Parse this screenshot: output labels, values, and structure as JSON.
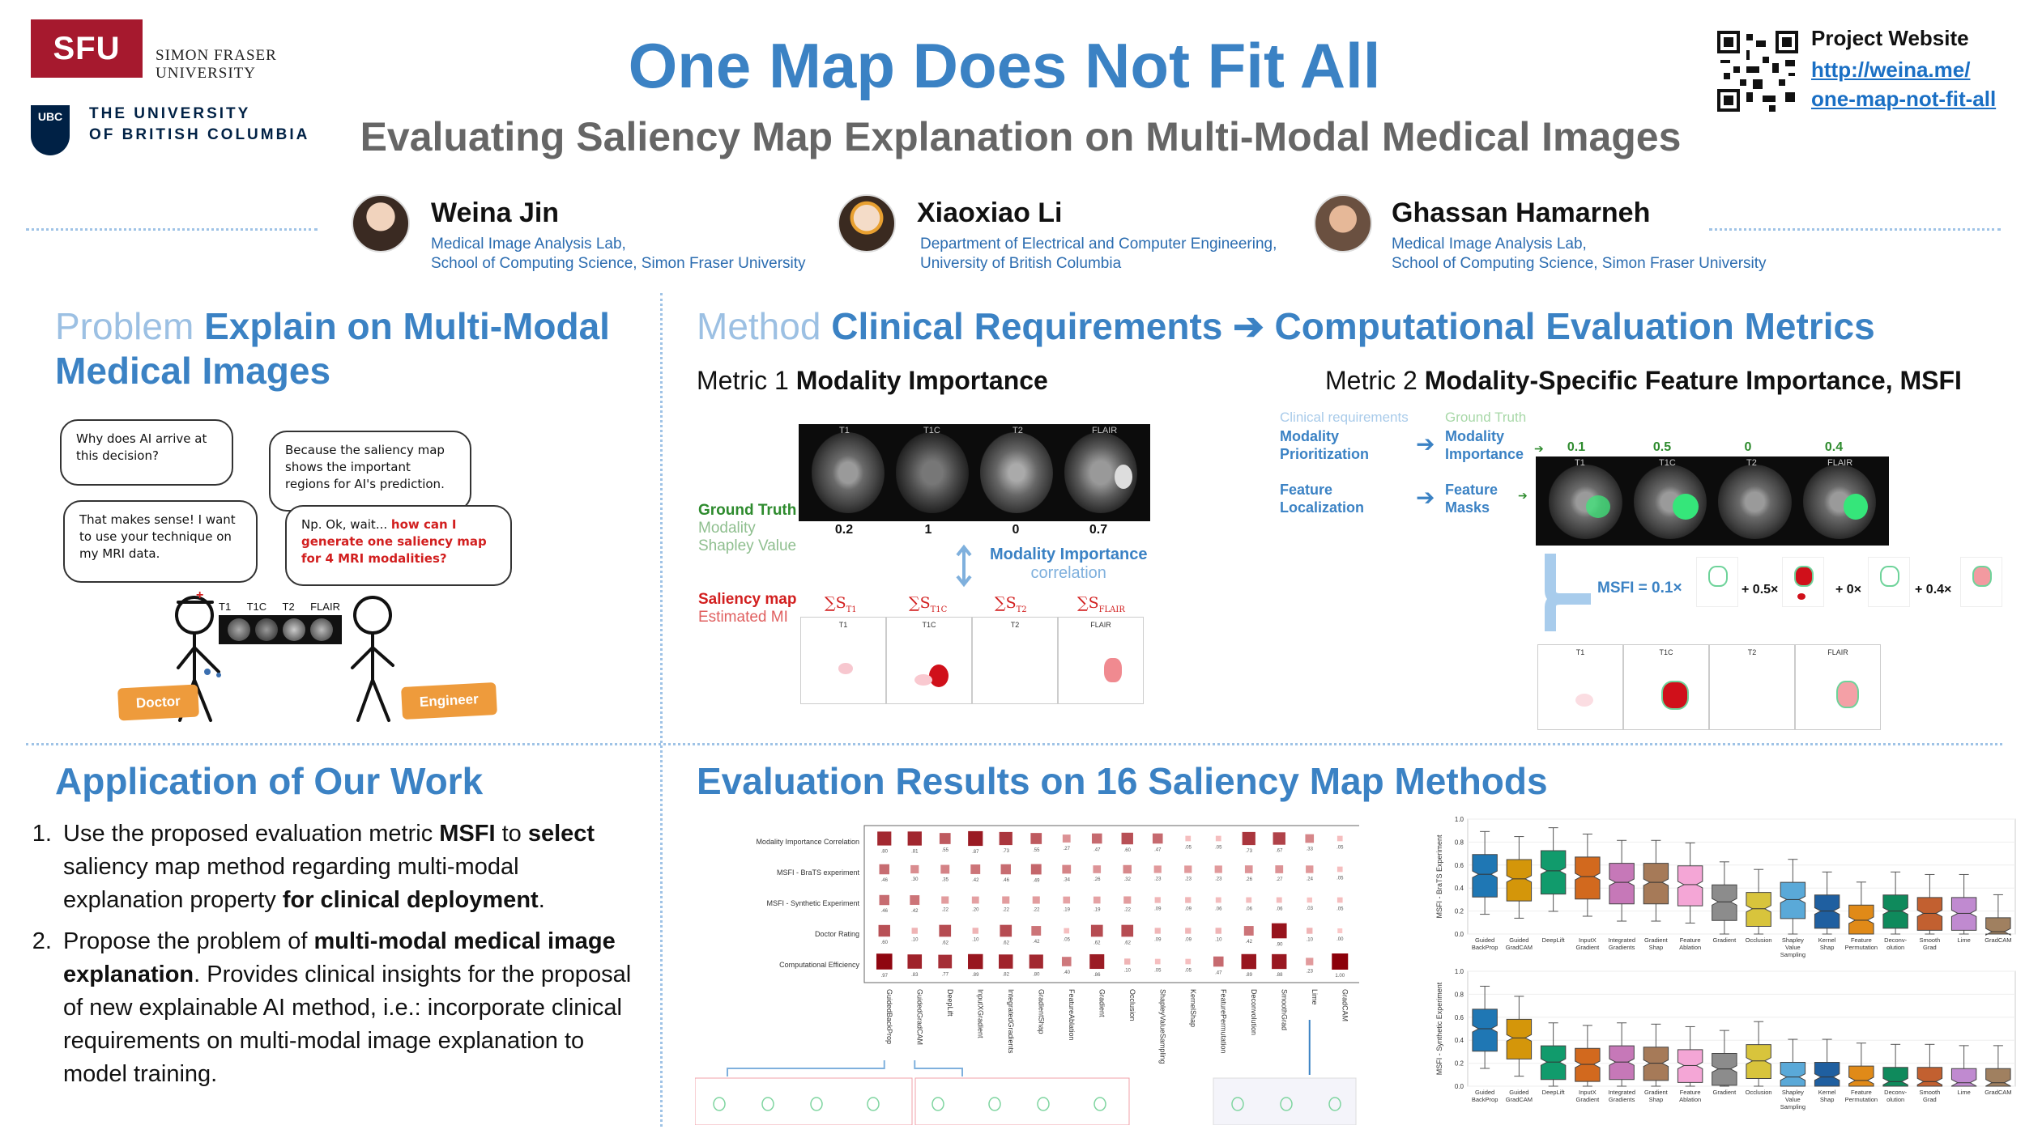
{
  "header": {
    "sfu_logo_text": "SFU",
    "sfu_name_line1": "SIMON FRASER",
    "sfu_name_line2": "UNIVERSITY",
    "ubc_crest_text": "UBC",
    "ubc_name_line1": "THE UNIVERSITY",
    "ubc_name_line2": "OF BRITISH COLUMBIA",
    "title": "One Map Does Not Fit All",
    "subtitle": "Evaluating Saliency Map Explanation on Multi-Modal Medical Images",
    "project_label": "Project Website",
    "project_link_line1": "http://weina.me/",
    "project_link_line2": "one-map-not-fit-all"
  },
  "authors": [
    {
      "name": "Weina Jin",
      "aff1": "Medical Image Analysis Lab,",
      "aff2": "School of Computing Science, Simon Fraser University"
    },
    {
      "name": "Xiaoxiao Li",
      "aff1": "Department of Electrical and Computer Engineering,",
      "aff2": "University of British Columbia"
    },
    {
      "name": "Ghassan Hamarneh",
      "aff1": "Medical Image Analysis Lab,",
      "aff2": "School of Computing Science, Simon Fraser University"
    }
  ],
  "problem": {
    "light": "Problem",
    "title_line1": "Explain on Multi-Modal",
    "title_line2": "Medical Images",
    "bubble1": "Why does AI arrive at this decision?",
    "bubble2": "Because the saliency map shows the important regions for AI's prediction.",
    "bubble3": "That makes sense! I want to use your technique on my MRI data.",
    "bubble4_plain": "Np. Ok, wait... ",
    "bubble4_red": "how can I generate one saliency map for 4 MRI modalities?",
    "modalities": [
      "T1",
      "T1C",
      "T2",
      "FLAIR"
    ],
    "tag_doctor": "Doctor",
    "tag_engineer": "Engineer"
  },
  "method": {
    "light": "Method",
    "title_a": "Clinical Requirements",
    "arrow": "➔",
    "title_b": "Computational Evaluation Metrics",
    "metric1_prefix": "Metric 1",
    "metric1_name": "Modality Importance",
    "metric2_prefix": "Metric 2",
    "metric2_name": "Modality-Specific Feature Importance, MSFI",
    "m1": {
      "image_labels": [
        "T1",
        "T1C",
        "T2",
        "FLAIR"
      ],
      "ground_truth": "Ground Truth",
      "gt_sub1": "Modality",
      "gt_sub2": "Shapley Value",
      "gt_values": [
        "0.2",
        "1",
        "0",
        "0.7"
      ],
      "mi_label": "Modality Importance",
      "mi_sub": "correlation",
      "sal_label": "Saliency map",
      "sal_sub": "Estimated MI",
      "sum_labels": [
        "∑S",
        "∑S",
        "∑S",
        "∑S"
      ],
      "sum_subs": [
        "T1",
        "T1C",
        "T2",
        "FLAIR"
      ]
    },
    "m2": {
      "clin_req": "Clinical requirements",
      "ground_truth": "Ground Truth",
      "req1_line1": "Modality",
      "req1_line2": "Prioritization",
      "gt1_line1": "Modality",
      "gt1_line2": "Importance",
      "req2_line1": "Feature",
      "req2_line2": "Localization",
      "gt2_line1": "Feature",
      "gt2_line2": "Masks",
      "values": [
        "0.1",
        "0.5",
        "0",
        "0.4"
      ],
      "image_labels": [
        "T1",
        "T1C",
        "T2",
        "FLAIR"
      ],
      "msfi_label": "MSFI = 0.1×",
      "plus_terms": [
        "+ 0.5×",
        "+ 0×",
        "+ 0.4×"
      ]
    }
  },
  "application": {
    "title": "Application of Our Work",
    "item1_a": "Use the proposed evaluation metric ",
    "item1_b": "MSFI",
    "item1_c": " to ",
    "item1_d": "select",
    "item1_e": " saliency map method regarding multi-modal explanation property ",
    "item1_f": "for clinical deployment",
    "item1_g": ".",
    "item2_a": "Propose the problem of ",
    "item2_b": "multi-modal medical image explanation",
    "item2_c": ". Provides clinical insights for the proposal of new explainable AI method, i.e.: incorporate clinical requirements on multi-modal image explanation to model training."
  },
  "results": {
    "title": "Evaluation Results on 16 Saliency Map Methods",
    "heatmap_rows": [
      "Modality Importance Correlation",
      "MSFI - BraTS experiment",
      "MSFI - Synthetic Experiment",
      "Doctor Rating",
      "Computational Efficiency"
    ],
    "heatmap_cols": [
      "GuidedBackProp",
      "GuidedGradCAM",
      "DeepLift",
      "InputXGradient",
      "IntegratedGradients",
      "GradientShap",
      "FeatureAblation",
      "Gradient",
      "Occlusion",
      "ShapleyValueSampling",
      "KernelShap",
      "FeaturePermutation",
      "Deconvolution",
      "SmoothGrad",
      "Lime",
      "GradCAM"
    ],
    "heatmap_values": [
      [
        0.8,
        0.81,
        0.55,
        0.87,
        0.73,
        0.55,
        0.27,
        0.47,
        0.6,
        0.47,
        0.05,
        0.05,
        0.73,
        0.67,
        0.33,
        0.05
      ],
      [
        0.46,
        0.3,
        0.35,
        0.42,
        0.46,
        0.49,
        0.34,
        0.26,
        0.32,
        0.23,
        0.23,
        0.23,
        0.26,
        0.27,
        0.24,
        0.05
      ],
      [
        0.46,
        0.42,
        0.22,
        0.2,
        0.22,
        0.22,
        0.19,
        0.19,
        0.22,
        0.09,
        0.09,
        0.06,
        0.06,
        0.06,
        0.03,
        0.05
      ],
      [
        0.6,
        0.1,
        0.62,
        0.1,
        0.62,
        0.42,
        0.05,
        0.62,
        0.62,
        0.09,
        0.09,
        0.1,
        0.42,
        0.9,
        0.1,
        0.0
      ],
      [
        0.97,
        0.83,
        0.77,
        0.89,
        0.82,
        0.8,
        0.4,
        0.86,
        0.1,
        0.05,
        0.05,
        0.47,
        0.89,
        0.88,
        0.23,
        1.0
      ]
    ],
    "box_methods": [
      "Guided BackProp",
      "Guided GradCAM",
      "DeepLift",
      "InputX Gradient",
      "Integrated Gradients",
      "Gradient Shap",
      "Feature Ablation",
      "Gradient",
      "Occlusion",
      "Shapley Value Sampling",
      "Kernel Shap",
      "Feature Permutation",
      "Deconv- olution",
      "Smooth Grad",
      "Lime",
      "GradCAM"
    ],
    "box1_ylabel": "MSFI - BraTS Experiment",
    "box2_ylabel": "MSFI - Synthetic Experiment",
    "box_yticks": [
      "1.0",
      "0.8",
      "0.6",
      "0.4",
      "0.2",
      "0.0"
    ],
    "box1_medians": [
      0.52,
      0.48,
      0.55,
      0.5,
      0.45,
      0.45,
      0.43,
      0.28,
      0.22,
      0.3,
      0.2,
      0.12,
      0.2,
      0.18,
      0.18,
      0.02
    ],
    "box2_medians": [
      0.5,
      0.42,
      0.21,
      0.19,
      0.21,
      0.2,
      0.18,
      0.15,
      0.22,
      0.08,
      0.08,
      0.05,
      0.04,
      0.04,
      0.03,
      0.03
    ],
    "colors": [
      "#1f77b4",
      "#d4960a",
      "#119b6c",
      "#d2691e",
      "#c678b8",
      "#a67a58",
      "#f4a6d6",
      "#8c8c8c",
      "#d8c43c",
      "#5aa9d8",
      "#1f5fa0",
      "#e08a18",
      "#0f8a5c",
      "#c26030",
      "#c08ad0",
      "#a08060"
    ]
  }
}
